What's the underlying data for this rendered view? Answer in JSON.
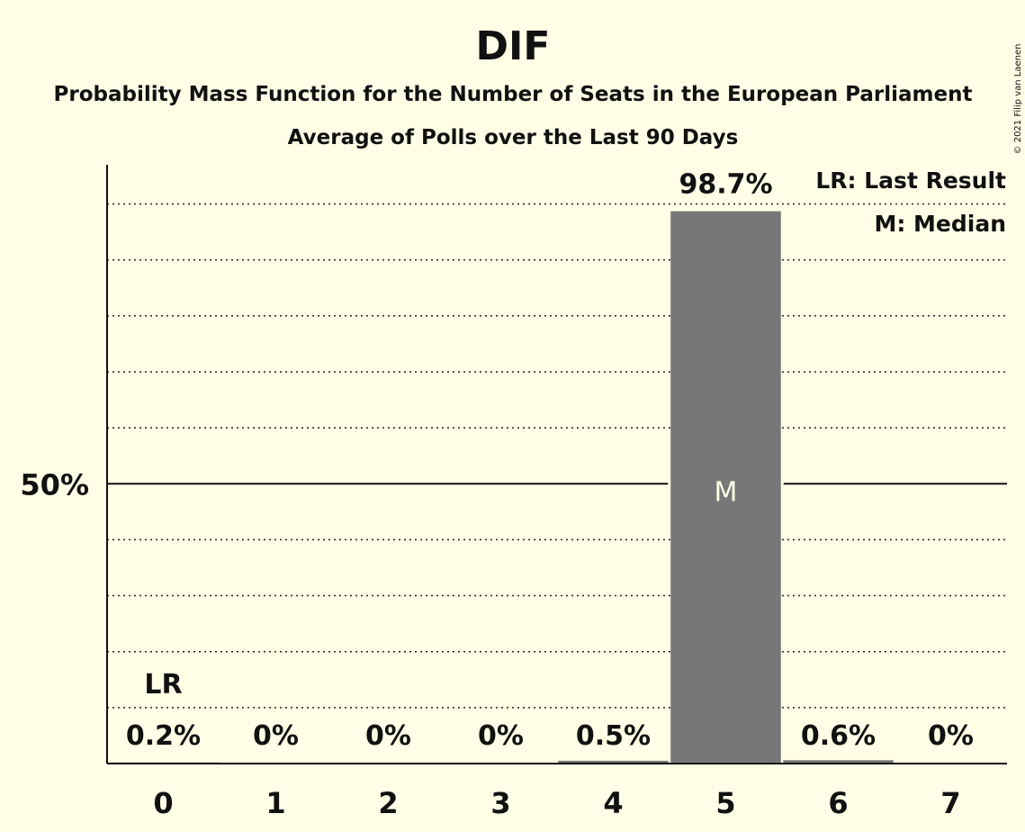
{
  "chart_data": {
    "type": "bar",
    "title": "DIF",
    "subtitle_line1": "Probability Mass Function for the Number of Seats in the European Parliament",
    "subtitle_line2": "Average of Polls over the Last 90 Days",
    "copyright": "© 2021 Filip van Laenen",
    "legend": {
      "last_result": "LR: Last Result",
      "median": "M: Median",
      "placement": "top-right"
    },
    "categories": [
      "0",
      "1",
      "2",
      "3",
      "4",
      "5",
      "6",
      "7"
    ],
    "values": [
      0.2,
      0,
      0,
      0,
      0.5,
      98.7,
      0.6,
      0
    ],
    "value_labels": [
      "0.2%",
      "0%",
      "0%",
      "0%",
      "0.5%",
      "98.7%",
      "0.6%",
      "0%"
    ],
    "ylim": [
      0,
      107
    ],
    "ytick_label": "50%",
    "ytick_value": 50,
    "minor_grid_step": 10,
    "grid": true,
    "last_result_index": 0,
    "last_result_marker": "LR",
    "median_index": 5,
    "median_marker": "M",
    "colors": {
      "background": "#FFFEE6",
      "bar": "#777777",
      "text": "#111111"
    }
  }
}
